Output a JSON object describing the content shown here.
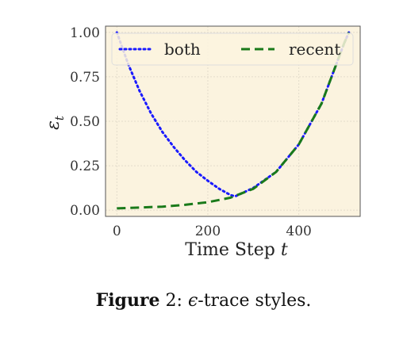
{
  "chart_data": {
    "type": "line",
    "xlabel": "Time Step",
    "xlabel_var": "t",
    "ylabel": "ε",
    "ylabel_sub": "t",
    "xlim": [
      -25,
      535
    ],
    "ylim": [
      -0.035,
      1.035
    ],
    "x_ticks": [
      0,
      200,
      400
    ],
    "x_tick_labels": [
      "0",
      "200",
      "400"
    ],
    "y_ticks": [
      0.0,
      0.25,
      0.5,
      0.75,
      1.0
    ],
    "y_tick_labels": [
      "0.00",
      "0.25",
      "0.50",
      "0.75",
      "1.00"
    ],
    "grid": true,
    "legend": "top",
    "background": "#fbf3df",
    "series": [
      {
        "name": "both",
        "style": "dotted",
        "color": "#1a1aff",
        "x": [
          0,
          25,
          50,
          75,
          100,
          125,
          150,
          175,
          200,
          225,
          250,
          260,
          300,
          350,
          400,
          450,
          500,
          510
        ],
        "y": [
          1.0,
          0.82,
          0.67,
          0.545,
          0.44,
          0.355,
          0.28,
          0.215,
          0.165,
          0.12,
          0.085,
          0.078,
          0.125,
          0.215,
          0.37,
          0.6,
          0.94,
          1.0
        ]
      },
      {
        "name": "recent",
        "style": "dashed",
        "color": "#1a7a1a",
        "x": [
          0,
          50,
          100,
          150,
          200,
          250,
          300,
          350,
          400,
          450,
          500,
          510
        ],
        "y": [
          0.01,
          0.015,
          0.02,
          0.03,
          0.045,
          0.07,
          0.12,
          0.215,
          0.37,
          0.6,
          0.94,
          1.0
        ]
      }
    ]
  },
  "caption": {
    "label": "Figure",
    "number": "2",
    "symbol": "ϵ",
    "text": "-trace styles."
  }
}
